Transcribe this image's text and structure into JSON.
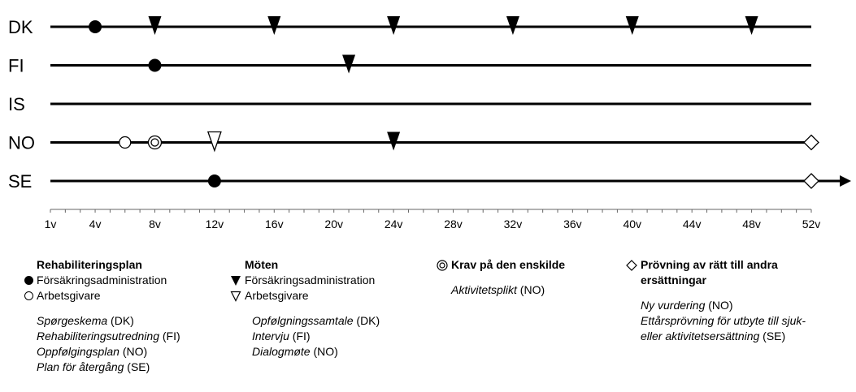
{
  "timeline": {
    "countries": [
      "DK",
      "FI",
      "IS",
      "NO",
      "SE"
    ],
    "axis_ticks": [
      "1v",
      "4v",
      "8v",
      "12v",
      "16v",
      "20v",
      "24v",
      "28v",
      "32v",
      "36v",
      "40v",
      "44v",
      "48v",
      "52v"
    ],
    "tick_weeks": [
      1,
      4,
      8,
      12,
      16,
      20,
      24,
      28,
      32,
      36,
      40,
      44,
      48,
      52
    ],
    "markers": [
      {
        "country": "DK",
        "week": 4,
        "type": "plan-administration"
      },
      {
        "country": "DK",
        "week": 8,
        "type": "meeting-administration"
      },
      {
        "country": "DK",
        "week": 16,
        "type": "meeting-administration"
      },
      {
        "country": "DK",
        "week": 24,
        "type": "meeting-administration"
      },
      {
        "country": "DK",
        "week": 32,
        "type": "meeting-administration"
      },
      {
        "country": "DK",
        "week": 40,
        "type": "meeting-administration"
      },
      {
        "country": "DK",
        "week": 48,
        "type": "meeting-administration"
      },
      {
        "country": "FI",
        "week": 8,
        "type": "plan-administration"
      },
      {
        "country": "FI",
        "week": 21,
        "type": "meeting-administration"
      },
      {
        "country": "NO",
        "week": 6,
        "type": "plan-employer"
      },
      {
        "country": "NO",
        "week": 8,
        "type": "requirement-individual"
      },
      {
        "country": "NO",
        "week": 12,
        "type": "meeting-employer"
      },
      {
        "country": "NO",
        "week": 24,
        "type": "meeting-administration"
      },
      {
        "country": "NO",
        "week": 52,
        "type": "review"
      },
      {
        "country": "SE",
        "week": 12,
        "type": "plan-administration"
      },
      {
        "country": "SE",
        "week": 52,
        "type": "review"
      }
    ],
    "arrow_country": "SE"
  },
  "legend": {
    "plan": {
      "heading": "Rehabiliteringsplan",
      "items": [
        {
          "icon": "filled-circle-icon",
          "label": "Försäkringsadministration"
        },
        {
          "icon": "open-circle-icon",
          "label": "Arbetsgivare"
        }
      ],
      "examples": [
        {
          "name": "Spørgeskema",
          "suffix": " (DK)"
        },
        {
          "name": "Rehabiliteringsutredning",
          "suffix": " (FI)"
        },
        {
          "name": "Oppfølgingsplan",
          "suffix": " (NO)"
        },
        {
          "name": "Plan för återgång",
          "suffix": " (SE)"
        }
      ]
    },
    "meetings": {
      "heading": "Möten",
      "items": [
        {
          "icon": "filled-triangle-down-icon",
          "label": "Försäkringsadministration"
        },
        {
          "icon": "open-triangle-down-icon",
          "label": "Arbetsgivare"
        }
      ],
      "examples": [
        {
          "name": "Opfølgningssamtale",
          "suffix": " (DK)"
        },
        {
          "name": "Intervju",
          "suffix": " (FI)"
        },
        {
          "name": "Dialogmøte",
          "suffix": " (NO)"
        }
      ]
    },
    "requirement": {
      "heading": "Krav på den enskilde",
      "examples": [
        {
          "name": "Aktivitetsplikt",
          "suffix": " (NO)"
        }
      ]
    },
    "review": {
      "heading_line1": "Prövning av rätt till andra",
      "heading_line2": "ersättningar",
      "examples": [
        {
          "name": "Ny vurdering",
          "suffix": " (NO)"
        },
        {
          "name": "Ettårsprövning för utbyte till sjuk-",
          "suffix": ""
        },
        {
          "name": "eller aktivitetsersättning",
          "suffix": " (SE)"
        }
      ]
    }
  }
}
